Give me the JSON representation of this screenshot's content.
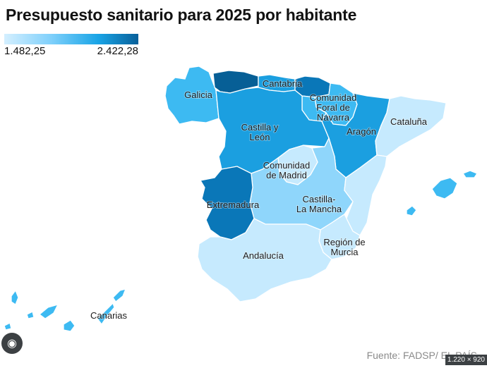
{
  "title": "Presupuesto sanitario para 2025 por habitante",
  "legend": {
    "min": "1.482,25",
    "max": "2.422,28"
  },
  "colors": {
    "very_light": "#c6eafe",
    "light": "#8fd6fb",
    "medium": "#3dbaf2",
    "medium_dark": "#1b9fe0",
    "dark": "#0a77b8",
    "darkest": "#075f96"
  },
  "regions": {
    "galicia": "Galicia",
    "cantabria": "Cantabria",
    "navarra": "Comunidad\nForal de\nNavarra",
    "castilla_leon": "Castilla y\nLeón",
    "aragon": "Aragón",
    "cataluna": "Cataluña",
    "madrid": "Comunidad\nde Madrid",
    "extremadura": "Extremadura",
    "castilla_mancha": "Castilla-\nLa Mancha",
    "murcia": "Región de\nMurcia",
    "andalucia": "Andalucía",
    "canarias": "Canarias"
  },
  "source": "Fuente: FADSP/ EL PAÍS",
  "overlay": {
    "dims": "1.220 × 920"
  }
}
